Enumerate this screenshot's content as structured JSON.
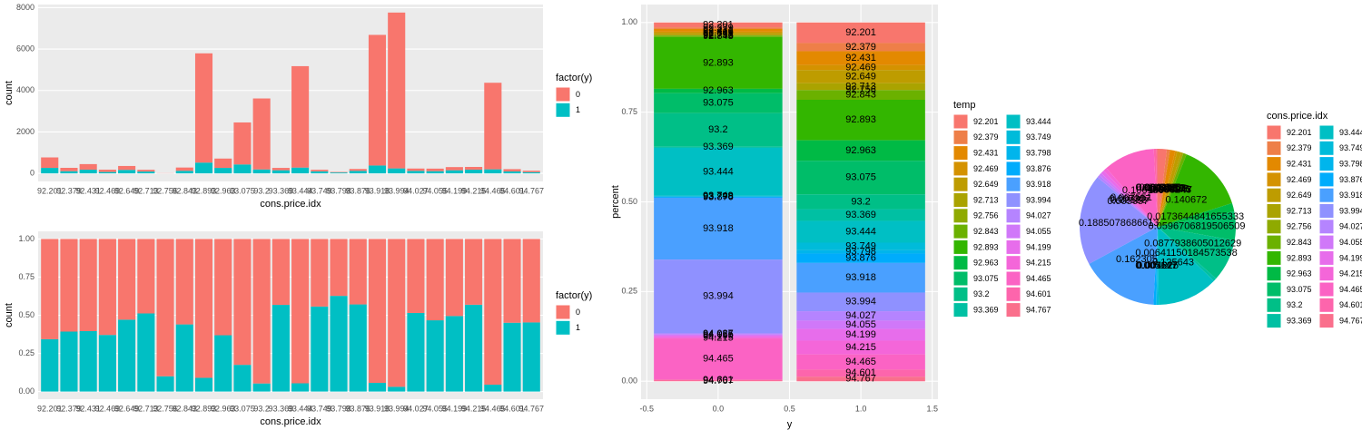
{
  "chart_data": [
    {
      "type": "stacked_bar",
      "x_label": "cons.price.idx",
      "y_label": "count",
      "legend_title": "factor(y)",
      "categories": [
        "92.201",
        "92.379",
        "92.431",
        "92.469",
        "92.649",
        "92.713",
        "92.756",
        "92.843",
        "92.893",
        "92.963",
        "93.075",
        "93.2",
        "93.369",
        "93.444",
        "93.749",
        "93.798",
        "93.876",
        "93.918",
        "93.994",
        "94.027",
        "94.055",
        "94.199",
        "94.215",
        "94.465",
        "94.601",
        "94.767"
      ],
      "series": [
        {
          "name": "0",
          "color": "#F8766D",
          "values": [
            506,
            162,
            270,
            112,
            189,
            84,
            9,
            158,
            5274,
            451,
            2028,
            3426,
            114,
            4895,
            77,
            25,
            91,
            6305,
            7523,
            113,
            122,
            153,
            134,
            4179,
            112,
            70
          ]
        },
        {
          "name": "1",
          "color": "#00BFC4",
          "values": [
            264,
            105,
            177,
            66,
            168,
            88,
            1,
            124,
            520,
            264,
            430,
            190,
            150,
            280,
            97,
            42,
            121,
            380,
            240,
            120,
            107,
            150,
            177,
            195,
            92,
            58
          ]
        }
      ],
      "ylim": [
        -390,
        8150
      ],
      "yticks": [
        0,
        2000,
        4000,
        6000,
        8000
      ],
      "grid": true
    },
    {
      "type": "filled_bar",
      "x_label": "cons.price.idx",
      "y_label": "count",
      "legend_title": "factor(y)",
      "categories": [
        "92.201",
        "92.379",
        "92.431",
        "92.469",
        "92.649",
        "92.713",
        "92.756",
        "92.843",
        "92.893",
        "92.963",
        "93.075",
        "93.2",
        "93.369",
        "93.444",
        "93.749",
        "93.798",
        "93.876",
        "93.918",
        "93.994",
        "94.027",
        "94.055",
        "94.199",
        "94.215",
        "94.465",
        "94.601",
        "94.767"
      ],
      "series": [
        {
          "name": "0",
          "color": "#F8766D",
          "values": [
            0.657,
            0.607,
            0.604,
            0.629,
            0.529,
            0.488,
            0.9,
            0.56,
            0.91,
            0.631,
            0.825,
            0.947,
            0.432,
            0.946,
            0.443,
            0.373,
            0.429,
            0.943,
            0.969,
            0.485,
            0.533,
            0.505,
            0.431,
            0.955,
            0.549,
            0.547
          ]
        },
        {
          "name": "1",
          "color": "#00BFC4",
          "values": [
            0.343,
            0.393,
            0.396,
            0.371,
            0.471,
            0.512,
            0.1,
            0.44,
            0.09,
            0.369,
            0.175,
            0.053,
            0.568,
            0.054,
            0.557,
            0.627,
            0.571,
            0.057,
            0.031,
            0.515,
            0.467,
            0.495,
            0.569,
            0.045,
            0.451,
            0.453
          ]
        }
      ],
      "ylim": [
        -0.05,
        1.05
      ],
      "yticks": [
        {
          "value": 0,
          "label": "0.00"
        },
        {
          "value": 0.25,
          "label": "0.25"
        },
        {
          "value": 0.5,
          "label": "0.50"
        },
        {
          "value": 0.75,
          "label": "0.75"
        },
        {
          "value": 1,
          "label": "1.00"
        }
      ],
      "grid": true
    },
    {
      "type": "percent_bar",
      "x_label": "y",
      "y_label": "percent",
      "legend_title": "temp",
      "x": [
        0,
        1
      ],
      "series": [
        {
          "name": "92.201",
          "color": "#F8766D",
          "values": [
            0.0138,
            0.0573
          ]
        },
        {
          "name": "92.379",
          "color": "#EE7F48",
          "values": [
            0.0044,
            0.0228
          ]
        },
        {
          "name": "92.431",
          "color": "#E38900",
          "values": [
            0.0074,
            0.0384
          ]
        },
        {
          "name": "92.469",
          "color": "#D49200",
          "values": [
            0.0031,
            0.0143
          ]
        },
        {
          "name": "92.649",
          "color": "#BE9C00",
          "values": [
            0.0052,
            0.0365
          ]
        },
        {
          "name": "92.713",
          "color": "#AAA300",
          "values": [
            0.0023,
            0.0191
          ]
        },
        {
          "name": "92.756",
          "color": "#8FAA00",
          "values": [
            0.0002,
            0.0002
          ]
        },
        {
          "name": "92.843",
          "color": "#6BB100",
          "values": [
            0.0043,
            0.0269
          ]
        },
        {
          "name": "92.893",
          "color": "#33B600",
          "values": [
            0.1442,
            0.1129
          ]
        },
        {
          "name": "92.963",
          "color": "#00BA45",
          "values": [
            0.0123,
            0.0573
          ]
        },
        {
          "name": "93.075",
          "color": "#00BD69",
          "values": [
            0.0554,
            0.0934
          ]
        },
        {
          "name": "93.2",
          "color": "#00BF87",
          "values": [
            0.0937,
            0.0413
          ]
        },
        {
          "name": "93.369",
          "color": "#00C0A3",
          "values": [
            0.0031,
            0.0326
          ]
        },
        {
          "name": "93.444",
          "color": "#00BFC4",
          "values": [
            0.1338,
            0.0608
          ]
        },
        {
          "name": "93.749",
          "color": "#00BBDA",
          "values": [
            0.0021,
            0.0211
          ]
        },
        {
          "name": "93.798",
          "color": "#00B5EC",
          "values": [
            0.0007,
            0.0091
          ]
        },
        {
          "name": "93.876",
          "color": "#00ACFC",
          "values": [
            0.0025,
            0.0263
          ]
        },
        {
          "name": "93.918",
          "color": "#4AA0FF",
          "values": [
            0.1724,
            0.0825
          ]
        },
        {
          "name": "93.994",
          "color": "#8F91FF",
          "values": [
            0.2056,
            0.0521
          ]
        },
        {
          "name": "94.027",
          "color": "#B584FF",
          "values": [
            0.0031,
            0.0261
          ]
        },
        {
          "name": "94.055",
          "color": "#D078F9",
          "values": [
            0.0033,
            0.0232
          ]
        },
        {
          "name": "94.199",
          "color": "#E76DEB",
          "values": [
            0.0042,
            0.0326
          ]
        },
        {
          "name": "94.215",
          "color": "#F466D9",
          "values": [
            0.0037,
            0.0384
          ]
        },
        {
          "name": "94.465",
          "color": "#FB63C4",
          "values": [
            0.1142,
            0.0423
          ]
        },
        {
          "name": "94.601",
          "color": "#FD65AC",
          "values": [
            0.0031,
            0.02
          ]
        },
        {
          "name": "94.767",
          "color": "#FA6F8C",
          "values": [
            0.0019,
            0.0126
          ]
        }
      ],
      "xlim": [
        -0.54,
        1.54
      ],
      "xticks": [
        {
          "value": -0.5,
          "label": "-0.5"
        },
        {
          "value": 0,
          "label": "0.0"
        },
        {
          "value": 0.5,
          "label": "0.5"
        },
        {
          "value": 1,
          "label": "1.0"
        },
        {
          "value": 1.5,
          "label": "1.5"
        }
      ],
      "ylim": [
        -0.05,
        1.05
      ],
      "yticks": [
        {
          "value": 0,
          "label": "0.00"
        },
        {
          "value": 0.25,
          "label": "0.25"
        },
        {
          "value": 0.5,
          "label": "0.50"
        },
        {
          "value": 0.75,
          "label": "0.75"
        },
        {
          "value": 1,
          "label": "1.00"
        }
      ],
      "grid": true
    },
    {
      "type": "pie",
      "legend_title": "cons.price.idx",
      "categories": [
        "92.201",
        "92.379",
        "92.431",
        "92.469",
        "92.649",
        "92.713",
        "92.756",
        "92.843",
        "92.893",
        "92.963",
        "93.075",
        "93.2",
        "93.369",
        "93.444",
        "93.749",
        "93.798",
        "93.876",
        "93.918",
        "93.994",
        "94.027",
        "94.055",
        "94.199",
        "94.215",
        "94.465",
        "94.601",
        "94.767"
      ],
      "values": [
        0.018695,
        0.006482,
        0.010853,
        0.004322,
        0.008668,
        0.004176,
        0.000243,
        0.006847,
        0.140672,
        0.0173644841655333,
        0.0596706819506509,
        0.0877938605012629,
        0.00641150184573538,
        0.125643,
        0.004225,
        0.001627,
        0.005147,
        0.162305,
        0.1885078686613,
        0.005657,
        0.00556,
        0.007357,
        0.007551,
        0.106196,
        0.004953,
        0.003108
      ],
      "colors": [
        "#F8766D",
        "#EE7F48",
        "#E38900",
        "#D49200",
        "#BE9C00",
        "#AAA300",
        "#8FAA00",
        "#6BB100",
        "#33B600",
        "#00BA45",
        "#00BD69",
        "#00BF87",
        "#00C0A3",
        "#00BFC4",
        "#00BBDA",
        "#00B5EC",
        "#00ACFC",
        "#4AA0FF",
        "#8F91FF",
        "#B584FF",
        "#D078F9",
        "#E76DEB",
        "#F466D9",
        "#FB63C4",
        "#FD65AC",
        "#FA6F8C"
      ]
    }
  ]
}
